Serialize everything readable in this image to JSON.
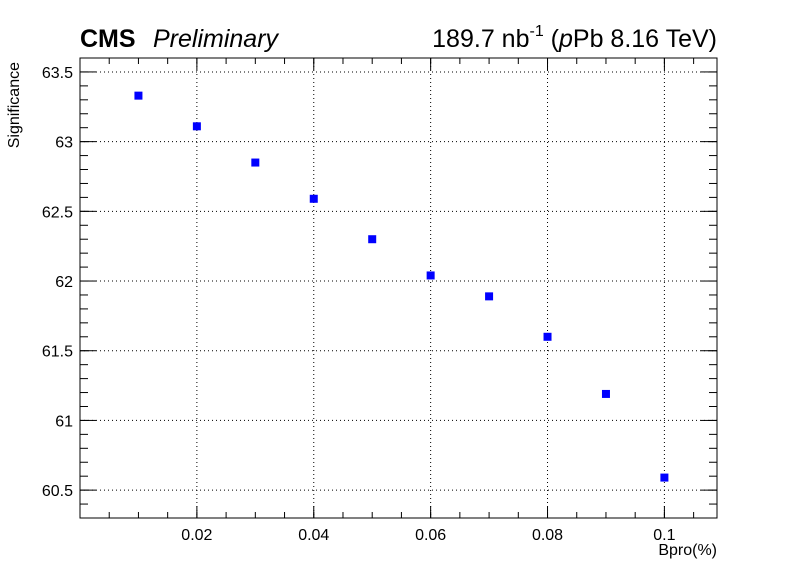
{
  "header": {
    "experiment": "CMS",
    "status": "Preliminary",
    "lumi_value": "189.7 nb",
    "lumi_exponent": "-1",
    "lumi_paren_open": " (",
    "lumi_p": "p",
    "lumi_rest": "Pb 8.16 TeV)"
  },
  "chart_data": {
    "type": "scatter",
    "xlabel": "Bpro(%)",
    "ylabel": "Significance",
    "xlim": [
      0.0,
      0.109
    ],
    "ylim": [
      60.3,
      63.6
    ],
    "xticks": [
      0.02,
      0.04,
      0.06,
      0.08,
      0.1
    ],
    "xtick_labels": [
      "0.02",
      "0.04",
      "0.06",
      "0.08",
      "0.1"
    ],
    "yticks": [
      60.5,
      61,
      61.5,
      62,
      62.5,
      63,
      63.5
    ],
    "ytick_labels": [
      "60.5",
      "61",
      "61.5",
      "62",
      "62.5",
      "63",
      "63.5"
    ],
    "grid": true,
    "marker": "square",
    "color": "#0000ff",
    "series": [
      {
        "x": [
          0.01,
          0.02,
          0.03,
          0.04,
          0.05,
          0.06,
          0.07,
          0.08,
          0.09,
          0.1
        ],
        "y": [
          63.33,
          63.11,
          62.85,
          62.59,
          62.3,
          62.04,
          61.89,
          61.6,
          61.19,
          60.59
        ]
      }
    ]
  }
}
